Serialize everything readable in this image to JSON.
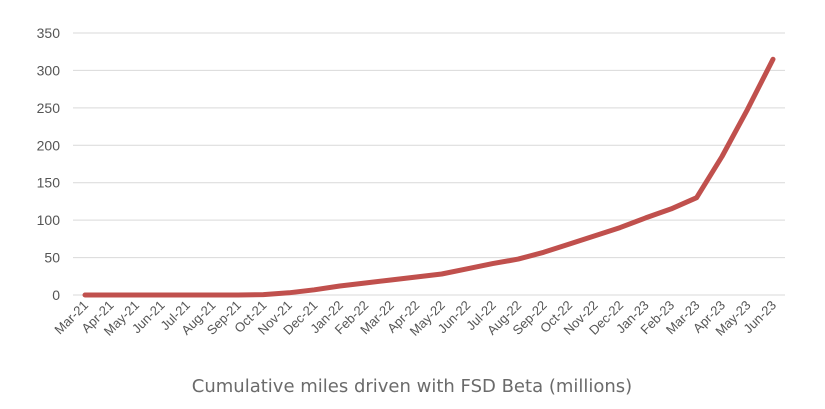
{
  "colors": {
    "line": "#c0504d",
    "grid": "#d9d9d9",
    "text": "#555555"
  },
  "chart_data": {
    "type": "line",
    "title": "",
    "caption": "Cumulative miles driven with FSD Beta (millions)",
    "xlabel": "",
    "ylabel": "",
    "ylim": [
      0,
      350
    ],
    "yticks": [
      0,
      50,
      100,
      150,
      200,
      250,
      300,
      350
    ],
    "grid": true,
    "legend": "none",
    "categories": [
      "Mar-21",
      "Apr-21",
      "May-21",
      "Jun-21",
      "Jul-21",
      "Aug-21",
      "Sep-21",
      "Oct-21",
      "Nov-21",
      "Dec-21",
      "Jan-22",
      "Feb-22",
      "Mar-22",
      "Apr-22",
      "May-22",
      "Jun-22",
      "Jul-22",
      "Aug-22",
      "Sep-22",
      "Oct-22",
      "Nov-22",
      "Dec-22",
      "Jan-23",
      "Feb-23",
      "Mar-23",
      "Apr-23",
      "May-23",
      "Jun-23"
    ],
    "series": [
      {
        "values": [
          0,
          0,
          0,
          0,
          0,
          0,
          0,
          0.5,
          3,
          7,
          12,
          16,
          20,
          24,
          28,
          35,
          42,
          48,
          57,
          68,
          79,
          90,
          103,
          115,
          130,
          185,
          248,
          315
        ]
      }
    ]
  }
}
